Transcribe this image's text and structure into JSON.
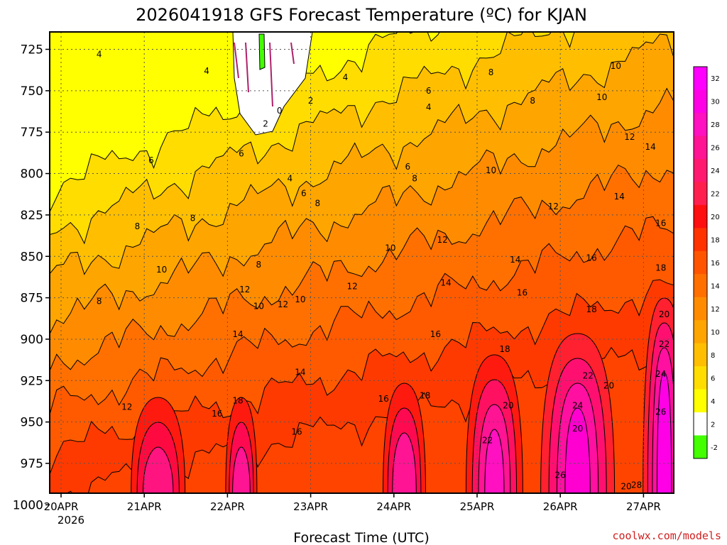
{
  "chart_data": {
    "type": "contour",
    "title": "2026041918 GFS Forecast Temperature (ºC) for KJAN",
    "xlabel": "Forecast Time (UTC)",
    "ylabel": "Pressure (hPa)",
    "y_ticks": [
      "725",
      "750",
      "775",
      "800",
      "825",
      "850",
      "875",
      "900",
      "925",
      "950",
      "975",
      "1000"
    ],
    "ylim": [
      1020,
      712
    ],
    "x_ticks": [
      "20APR",
      "21APR",
      "22APR",
      "23APR",
      "24APR",
      "25APR",
      "26APR",
      "27APR"
    ],
    "x_year": "2026",
    "xlim_hours": [
      0,
      180
    ],
    "colorbar": {
      "labels": [
        "32",
        "30",
        "28",
        "26",
        "24",
        "22",
        "20",
        "18",
        "16",
        "14",
        "12",
        "10",
        "8",
        "6",
        "4",
        "2",
        "-2"
      ],
      "colors": [
        "#ff00ff",
        "#ff00e6",
        "#ff10c0",
        "#ff1494",
        "#ff1a70",
        "#ff2050",
        "#ff1010",
        "#ff3300",
        "#ff5500",
        "#ff7000",
        "#ff8c00",
        "#ffa500",
        "#ffbf00",
        "#ffdd00",
        "#ffff00",
        "#ffffff",
        "#44ff00"
      ]
    },
    "contour_labels": [
      {
        "text": "4",
        "hour": 11,
        "p": 728
      },
      {
        "text": "4",
        "hour": 42,
        "p": 738
      },
      {
        "text": "4",
        "hour": 82,
        "p": 742
      },
      {
        "text": "4",
        "hour": 106,
        "p": 760
      },
      {
        "text": "0",
        "hour": 63,
        "p": 762
      },
      {
        "text": "2",
        "hour": 59,
        "p": 770
      },
      {
        "text": "2",
        "hour": 72,
        "p": 756
      },
      {
        "text": "6",
        "hour": 26,
        "p": 792
      },
      {
        "text": "6",
        "hour": 52,
        "p": 788
      },
      {
        "text": "6",
        "hour": 106,
        "p": 750
      },
      {
        "text": "6",
        "hour": 100,
        "p": 796
      },
      {
        "text": "6",
        "hour": 70,
        "p": 812
      },
      {
        "text": "4",
        "hour": 66,
        "p": 803
      },
      {
        "text": "8",
        "hour": 22,
        "p": 832
      },
      {
        "text": "8",
        "hour": 38,
        "p": 827
      },
      {
        "text": "8",
        "hour": 74,
        "p": 818
      },
      {
        "text": "8",
        "hour": 102,
        "p": 803
      },
      {
        "text": "8",
        "hour": 124,
        "p": 739
      },
      {
        "text": "8",
        "hour": 136,
        "p": 756
      },
      {
        "text": "8",
        "hour": 11,
        "p": 877
      },
      {
        "text": "8",
        "hour": 57,
        "p": 855
      },
      {
        "text": "10",
        "hour": 29,
        "p": 858
      },
      {
        "text": "10",
        "hour": 57,
        "p": 880
      },
      {
        "text": "10",
        "hour": 69,
        "p": 876
      },
      {
        "text": "10",
        "hour": 95,
        "p": 845
      },
      {
        "text": "10",
        "hour": 124,
        "p": 798
      },
      {
        "text": "10",
        "hour": 156,
        "p": 754
      },
      {
        "text": "10",
        "hour": 160,
        "p": 735
      },
      {
        "text": "12",
        "hour": 53,
        "p": 870
      },
      {
        "text": "12",
        "hour": 64,
        "p": 879
      },
      {
        "text": "12",
        "hour": 84,
        "p": 868
      },
      {
        "text": "12",
        "hour": 110,
        "p": 840
      },
      {
        "text": "12",
        "hour": 142,
        "p": 820
      },
      {
        "text": "12",
        "hour": 164,
        "p": 778
      },
      {
        "text": "12",
        "hour": 19,
        "p": 941
      },
      {
        "text": "14",
        "hour": 51,
        "p": 897
      },
      {
        "text": "14",
        "hour": 69,
        "p": 920
      },
      {
        "text": "14",
        "hour": 111,
        "p": 866
      },
      {
        "text": "14",
        "hour": 131,
        "p": 852
      },
      {
        "text": "14",
        "hour": 161,
        "p": 814
      },
      {
        "text": "14",
        "hour": 170,
        "p": 784
      },
      {
        "text": "16",
        "hour": 45,
        "p": 945
      },
      {
        "text": "16",
        "hour": 68,
        "p": 956
      },
      {
        "text": "16",
        "hour": 57,
        "p": 1001
      },
      {
        "text": "16",
        "hour": 93,
        "p": 936
      },
      {
        "text": "16",
        "hour": 108,
        "p": 897
      },
      {
        "text": "16",
        "hour": 133,
        "p": 872
      },
      {
        "text": "16",
        "hour": 153,
        "p": 851
      },
      {
        "text": "16",
        "hour": 173,
        "p": 830
      },
      {
        "text": "18",
        "hour": 51,
        "p": 937
      },
      {
        "text": "18",
        "hour": 105,
        "p": 934
      },
      {
        "text": "18",
        "hour": 128,
        "p": 906
      },
      {
        "text": "18",
        "hour": 153,
        "p": 882
      },
      {
        "text": "18",
        "hour": 173,
        "p": 857
      },
      {
        "text": "20",
        "hour": 129,
        "p": 940
      },
      {
        "text": "20",
        "hour": 149,
        "p": 954
      },
      {
        "text": "20",
        "hour": 158,
        "p": 928
      },
      {
        "text": "20",
        "hour": 163,
        "p": 989
      },
      {
        "text": "20",
        "hour": 174,
        "p": 885
      },
      {
        "text": "22",
        "hour": 123,
        "p": 961
      },
      {
        "text": "22",
        "hour": 152,
        "p": 922
      },
      {
        "text": "22",
        "hour": 174,
        "p": 903
      },
      {
        "text": "24",
        "hour": 149,
        "p": 940
      },
      {
        "text": "24",
        "hour": 173,
        "p": 921
      },
      {
        "text": "26",
        "hour": 173,
        "p": 944
      },
      {
        "text": "26",
        "hour": 144,
        "p": 982
      },
      {
        "text": "28",
        "hour": 166,
        "p": 988
      }
    ]
  },
  "credit": "coolwx.com/models"
}
